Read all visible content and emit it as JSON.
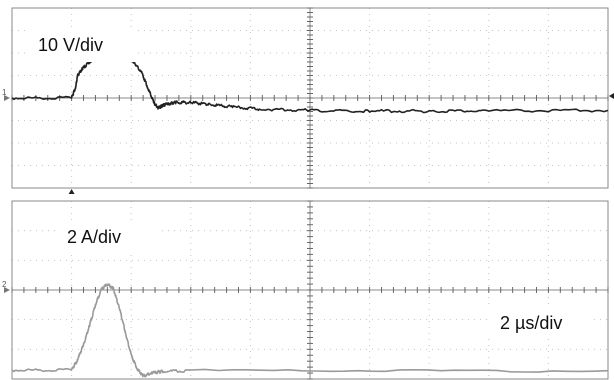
{
  "chart_data": [
    {
      "type": "line",
      "title": "",
      "label": "10 V/div",
      "channel_marker": "1",
      "grid": true,
      "x_divisions": 10,
      "y_divisions": 8,
      "time_scale": "2 µs/div",
      "xlim": [
        0,
        10
      ],
      "ylim": [
        -4,
        4
      ],
      "color": "#222222",
      "series": [
        {
          "x": [
            0.0,
            1.0,
            1.07,
            1.1,
            1.18,
            1.3,
            1.45,
            1.6,
            1.75,
            1.9,
            2.05,
            2.18,
            2.28,
            2.38,
            2.45,
            2.52,
            2.58,
            2.65,
            2.75,
            3.0,
            3.3,
            3.7,
            4.2,
            5.0,
            6.0,
            7.0,
            8.0,
            10.0
          ],
          "y": [
            0.0,
            0.0,
            0.5,
            1.0,
            1.3,
            1.6,
            1.85,
            2.0,
            1.98,
            1.85,
            1.6,
            1.1,
            0.45,
            -0.2,
            -0.45,
            -0.35,
            -0.28,
            -0.24,
            -0.2,
            -0.2,
            -0.28,
            -0.4,
            -0.5,
            -0.55,
            -0.58,
            -0.58,
            -0.57,
            -0.55
          ]
        }
      ]
    },
    {
      "type": "line",
      "title": "",
      "label": "2 A/div",
      "channel_marker": "2",
      "grid": true,
      "x_divisions": 10,
      "y_divisions": 6,
      "time_scale": "2 µs/div",
      "xlim": [
        0,
        10
      ],
      "ylim": [
        -3,
        3
      ],
      "color": "#9a9a9a",
      "series": [
        {
          "x": [
            0.0,
            1.0,
            1.1,
            1.2,
            1.3,
            1.4,
            1.5,
            1.6,
            1.7,
            1.8,
            1.9,
            2.0,
            2.1,
            2.2,
            2.35,
            2.5,
            3.0,
            10.0
          ],
          "y": [
            -2.7,
            -2.7,
            -2.35,
            -1.85,
            -1.2,
            -0.5,
            0.02,
            0.2,
            0.05,
            -0.6,
            -1.4,
            -2.2,
            -2.65,
            -2.9,
            -2.8,
            -2.75,
            -2.72,
            -2.72
          ]
        }
      ]
    }
  ]
}
